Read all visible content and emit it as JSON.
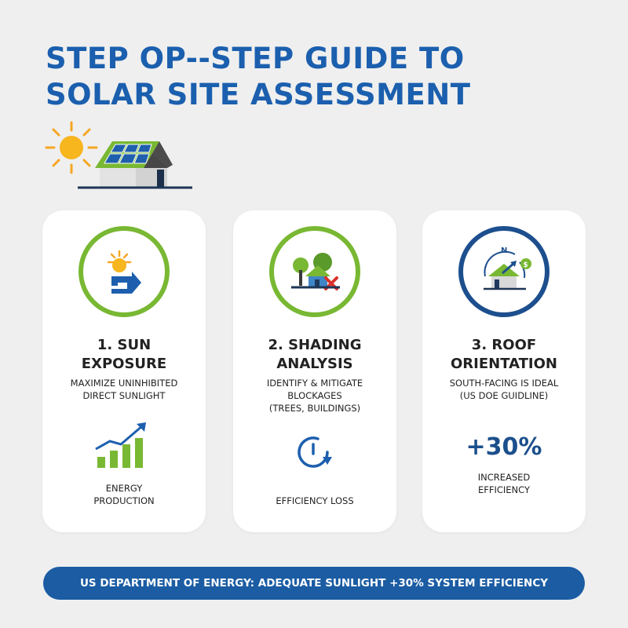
{
  "title": {
    "line1": "STEP OP--STEP GUIDE TO",
    "line2": "SOLAR SITE ASSESSMENT"
  },
  "colors": {
    "primary_blue": "#1b5fae",
    "navy": "#1d4f8e",
    "green": "#79b833",
    "sun_orange": "#f5a623",
    "background": "#efefef",
    "card": "#ffffff"
  },
  "cards": [
    {
      "icon": "sun-house-arrow-icon",
      "title_line1": "1. SUN",
      "title_line2": "EXPOSURE",
      "desc_line1": "MAXIMIZE UNINHIBITED",
      "desc_line2": "DIRECT SUNLIGHT",
      "stat_icon": "growth-bar-chart-icon",
      "stat_label_line1": "ENERGY",
      "stat_label_line2": "PRODUCTION"
    },
    {
      "icon": "trees-house-blocked-icon",
      "title_line1": "2. SHADING",
      "title_line2": "ANALYSIS",
      "desc_line1": "IDENTIFY & MITIGATE",
      "desc_line2": "BLOCKAGES",
      "desc_line3": "(TREES, BUILDINGS)",
      "stat_icon": "clock-loss-icon",
      "stat_label_line1": "EFFICIENCY LOSS"
    },
    {
      "icon": "compass-house-icon",
      "title_line1": "3. ROOF",
      "title_line2": "ORIENTATION",
      "desc_line1": "SOUTH-FACING IS IDEAL",
      "desc_line2": "(US DOE GUIDLINE)",
      "stat_value": "+30%",
      "stat_label_line1": "INCREASED",
      "stat_label_line2": "EFFICIENCY",
      "compass_letter": "N",
      "coin_symbol": "$"
    }
  ],
  "banner": {
    "text": "US DEPARTMENT OF ENERGY: ADEQUATE SUNLIGHT +30% SYSTEM EFFICIENCY"
  }
}
